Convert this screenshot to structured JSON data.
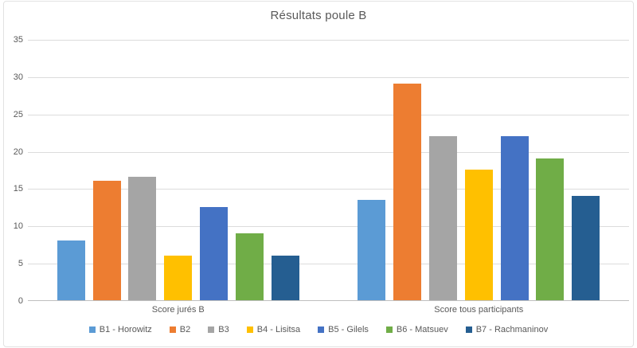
{
  "chart_data": {
    "type": "bar",
    "title": "Résultats poule B",
    "categories": [
      "Score jurés B",
      "Score tous participants"
    ],
    "series": [
      {
        "name": "B1 - Horowitz",
        "color": "#5B9BD5",
        "values": [
          8,
          13.5
        ]
      },
      {
        "name": "B2",
        "color": "#ED7D31",
        "values": [
          16,
          29
        ]
      },
      {
        "name": "B3",
        "color": "#A5A5A5",
        "values": [
          16.5,
          22
        ]
      },
      {
        "name": "B4 - Lisitsa",
        "color": "#FFC000",
        "values": [
          6,
          17.5
        ]
      },
      {
        "name": "B5 - Gilels",
        "color": "#4472C4",
        "values": [
          12.5,
          22
        ]
      },
      {
        "name": "B6 - Matsuev",
        "color": "#70AD47",
        "values": [
          9,
          19
        ]
      },
      {
        "name": "B7 - Rachmaninov",
        "color": "#255E91",
        "values": [
          6,
          14
        ]
      }
    ],
    "ylim": [
      0,
      35
    ],
    "yticks": [
      0,
      5,
      10,
      15,
      20,
      25,
      30,
      35
    ],
    "grid": true,
    "legend_position": "bottom",
    "colors": {
      "text": "#595959",
      "gridline": "#DCDCDC",
      "axis_line": "#BFBFBF",
      "chart_border": "#E2E2E2",
      "background": "#FFFFFF"
    }
  }
}
